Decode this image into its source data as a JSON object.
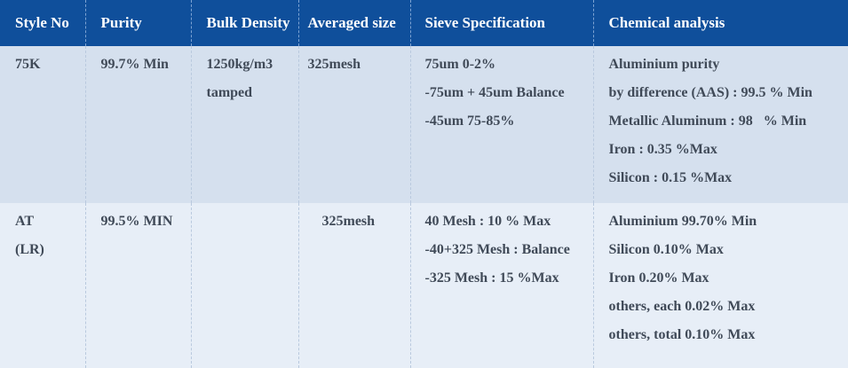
{
  "headers": {
    "style_no": "Style No",
    "purity": "Purity",
    "bulk_density": "Bulk Density",
    "averaged_size": "Averaged size",
    "sieve_spec": "Sieve Specification",
    "chemical_analysis": "Chemical analysis"
  },
  "rows": [
    {
      "style_no": [
        "75K"
      ],
      "purity": "99.7% Min",
      "bulk_density": [
        "1250kg/m3",
        "tamped"
      ],
      "averaged_size": "325mesh",
      "sieve": [
        "75um 0-2%",
        "-75um + 45um Balance",
        "-45um 75-85%"
      ],
      "chemical": [
        "Aluminium purity",
        "by difference (AAS) : 99.5 % Min",
        "Metallic Aluminum : 98   % Min",
        "Iron : 0.35 %Max",
        "Silicon : 0.15 %Max"
      ]
    },
    {
      "style_no": [
        "AT",
        "(LR)"
      ],
      "purity": "99.5% MIN",
      "bulk_density": [],
      "averaged_size": "325mesh",
      "sieve": [
        "40 Mesh : 10 % Max",
        "-40+325 Mesh : Balance",
        "-325 Mesh : 15 %Max"
      ],
      "chemical": [
        "Aluminium 99.70% Min",
        "Silicon 0.10% Max",
        "Iron 0.20% Max",
        "others, each 0.02% Max",
        "others, total 0.10% Max"
      ]
    }
  ],
  "colors": {
    "header_bg": "#0f4f9b",
    "row_a_bg": "#d5e0ee",
    "row_b_bg": "#e7eef7",
    "text": "#404a58"
  }
}
